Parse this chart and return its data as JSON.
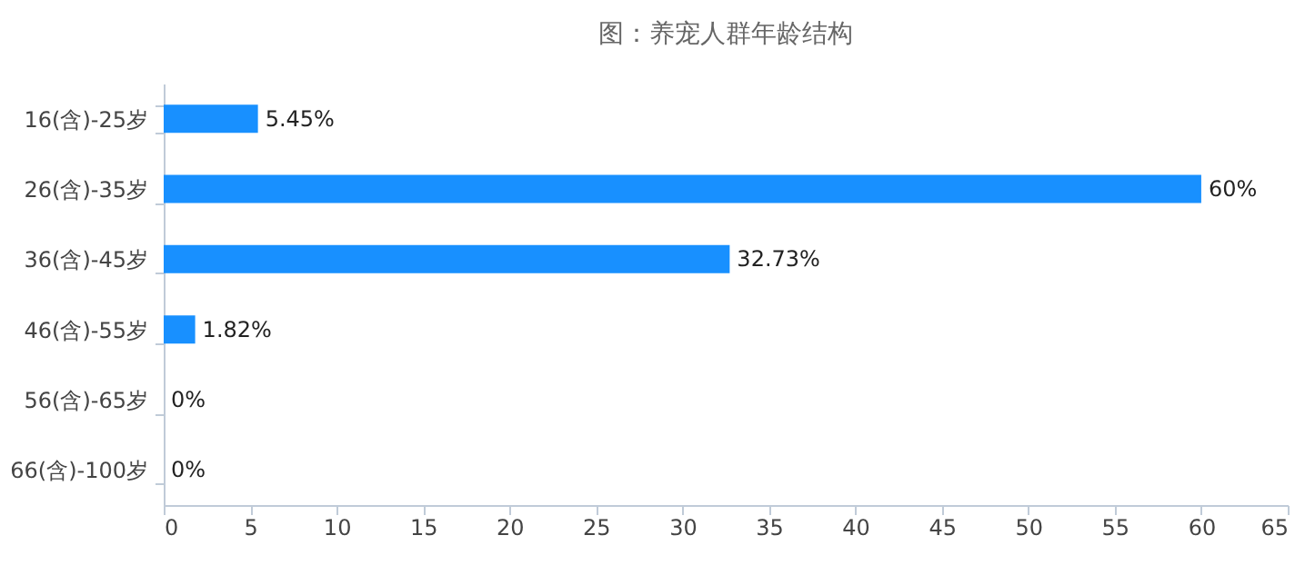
{
  "chart_data": {
    "type": "bar",
    "orientation": "horizontal",
    "title": "图：养宠人群年龄结构",
    "categories": [
      "16(含)-25岁",
      "26(含)-35岁",
      "36(含)-45岁",
      "46(含)-55岁",
      "56(含)-65岁",
      "66(含)-100岁"
    ],
    "values": [
      5.45,
      60,
      32.73,
      1.82,
      0,
      0
    ],
    "value_labels": [
      "5.45%",
      "60%",
      "32.73%",
      "1.82%",
      "0%",
      "0%"
    ],
    "color": "#1890ff",
    "xlim": [
      0,
      65
    ],
    "xticks": [
      0,
      5,
      10,
      15,
      20,
      25,
      30,
      35,
      40,
      45,
      50,
      55,
      60,
      65
    ],
    "grid": false
  }
}
